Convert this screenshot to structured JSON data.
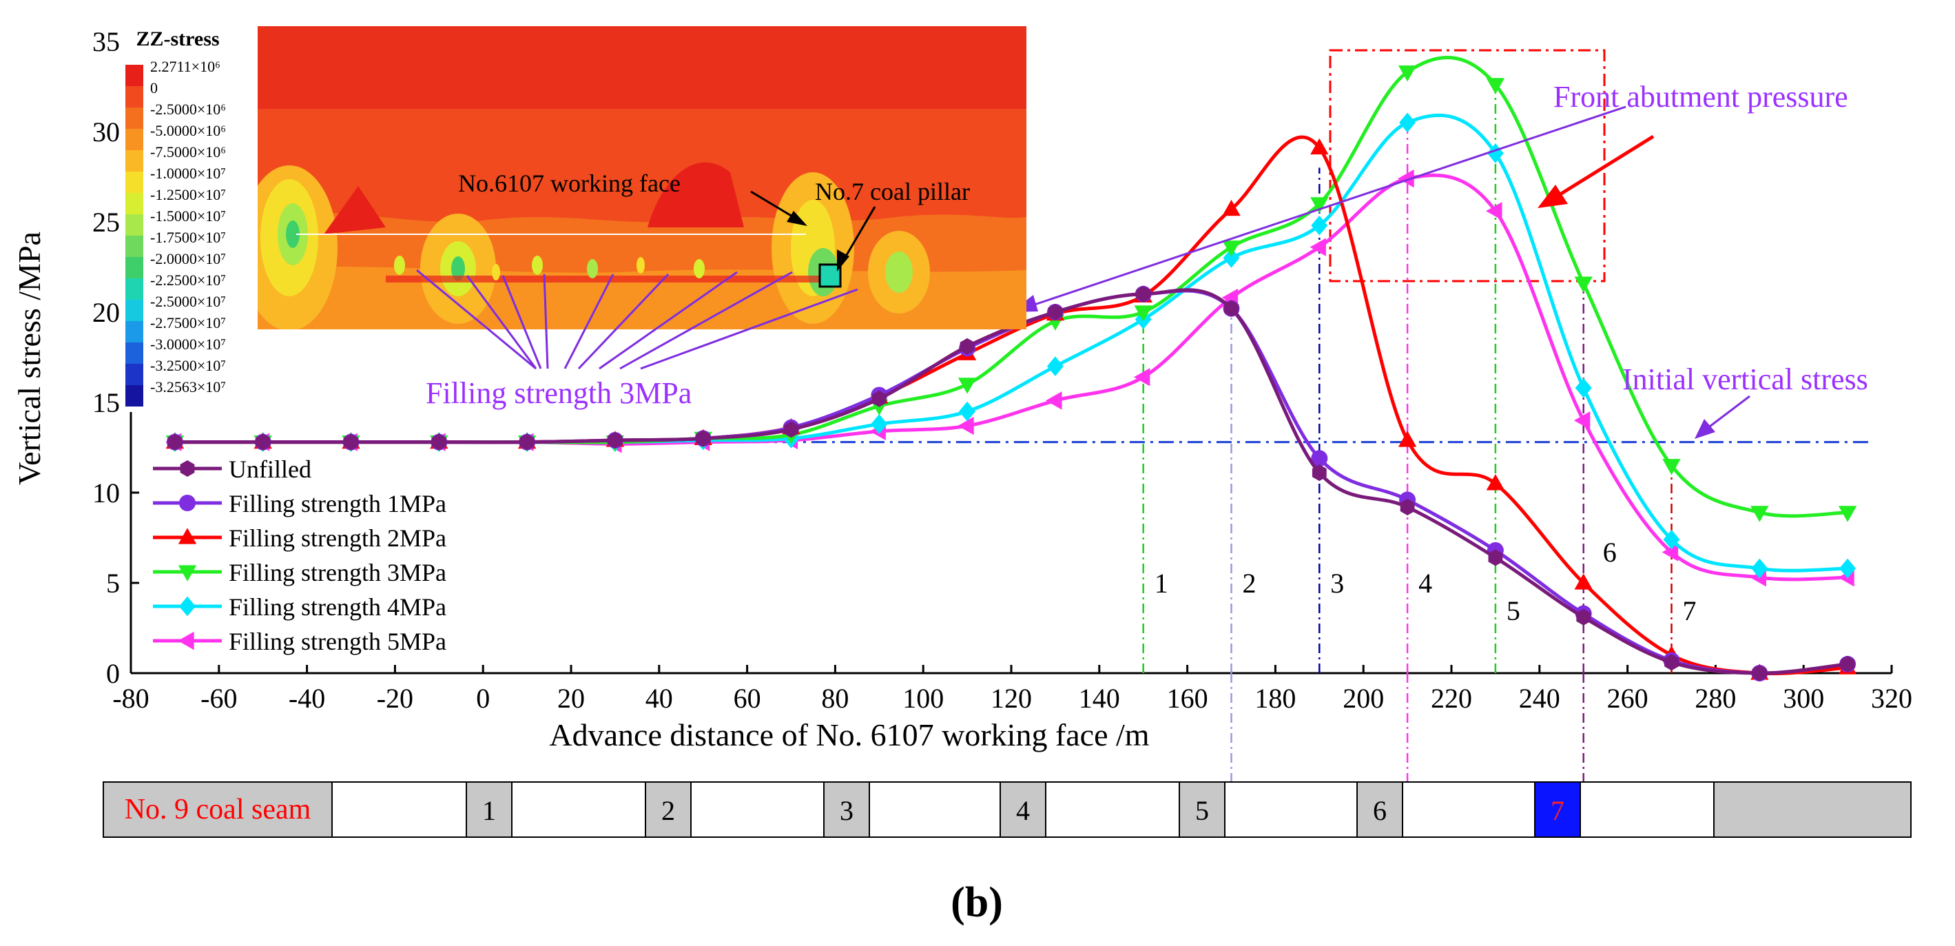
{
  "chart_data": {
    "type": "line",
    "xlabel": "Advance distance of No. 6107 working face /m",
    "ylabel": "Vertical stress /MPa",
    "xlim": [
      -80,
      320
    ],
    "ylim": [
      0,
      35
    ],
    "xticks": [
      -80,
      -60,
      -40,
      -20,
      0,
      20,
      40,
      60,
      80,
      100,
      120,
      140,
      160,
      180,
      200,
      220,
      240,
      260,
      280,
      300,
      320
    ],
    "yticks": [
      0,
      5,
      10,
      15,
      20,
      25,
      30,
      35
    ],
    "x": [
      -70,
      -50,
      -30,
      -10,
      10,
      30,
      50,
      70,
      90,
      110,
      130,
      150,
      170,
      190,
      210,
      230,
      250,
      270,
      290,
      310
    ],
    "series": [
      {
        "name": "Unfilled",
        "color": "#7a1a7a",
        "marker": "hexagon",
        "values": [
          12.8,
          12.8,
          12.8,
          12.8,
          12.8,
          12.9,
          13.0,
          13.5,
          15.2,
          18.1,
          20.0,
          21.0,
          20.2,
          11.1,
          9.2,
          6.4,
          3.1,
          0.6,
          0.0,
          0.5
        ]
      },
      {
        "name": "Filling strength 1MPa",
        "color": "#7f2de0",
        "marker": "circle",
        "values": [
          12.8,
          12.8,
          12.8,
          12.8,
          12.8,
          12.9,
          13.0,
          13.6,
          15.4,
          18.0,
          20.0,
          21.0,
          20.2,
          11.9,
          9.6,
          6.8,
          3.3,
          0.7,
          0.0,
          0.5
        ]
      },
      {
        "name": "Filling strength 2MPa",
        "color": "#ff0000",
        "marker": "triangle-up",
        "values": [
          12.8,
          12.8,
          12.8,
          12.8,
          12.8,
          12.9,
          13.0,
          13.6,
          15.3,
          17.7,
          19.9,
          20.9,
          25.7,
          29.1,
          12.9,
          10.5,
          5.0,
          1.0,
          0.0,
          0.3
        ]
      },
      {
        "name": "Filling strength 3MPa",
        "color": "#22ee22",
        "marker": "triangle-down",
        "values": [
          12.8,
          12.8,
          12.8,
          12.8,
          12.8,
          12.8,
          13.0,
          13.2,
          14.8,
          16.0,
          19.5,
          20.0,
          23.6,
          26.0,
          33.3,
          32.6,
          21.6,
          11.5,
          8.9,
          8.9
        ]
      },
      {
        "name": "Filling strength 4MPa",
        "color": "#00e5ff",
        "marker": "diamond",
        "values": [
          12.8,
          12.8,
          12.8,
          12.8,
          12.8,
          12.8,
          12.9,
          13.0,
          13.8,
          14.5,
          17.0,
          19.6,
          23.0,
          24.8,
          30.5,
          28.8,
          15.8,
          7.4,
          5.8,
          5.8
        ]
      },
      {
        "name": "Filling strength 5MPa",
        "color": "#ff33ee",
        "marker": "triangle-left",
        "values": [
          12.8,
          12.8,
          12.8,
          12.8,
          12.8,
          12.7,
          12.8,
          12.9,
          13.4,
          13.7,
          15.1,
          16.4,
          20.8,
          23.6,
          27.4,
          25.6,
          14.0,
          6.7,
          5.3,
          5.3
        ]
      }
    ],
    "initial_stress": {
      "label": "Initial vertical stress",
      "value": 12.8
    },
    "vertical_markers": [
      {
        "label": "1",
        "x": 150,
        "color": "#22cc22"
      },
      {
        "label": "2",
        "x": 170,
        "color": "#9999dd"
      },
      {
        "label": "3",
        "x": 190,
        "color": "#0000aa"
      },
      {
        "label": "4",
        "x": 210,
        "color": "#ff33ee"
      },
      {
        "label": "5",
        "x": 230,
        "color": "#22cc22"
      },
      {
        "label": "6",
        "x": 250,
        "color": "#7a1a7a"
      },
      {
        "label": "7",
        "x": 270,
        "color": "#cc0000"
      }
    ],
    "annotations": {
      "front_abutment": "Front abutment pressure",
      "initial_vertical_stress": "Initial vertical stress",
      "filling_strength": "Filling strength 3MPa",
      "working_face": "No.6107 working face",
      "coal_pillar": "No.7 coal pillar"
    },
    "contour": {
      "title": "ZZ-stress",
      "levels": [
        "2.2711×10⁶",
        "0",
        "-2.5000×10⁶",
        "-5.0000×10⁶",
        "-7.5000×10⁶",
        "-1.0000×10⁷",
        "-1.2500×10⁷",
        "-1.5000×10⁷",
        "-1.7500×10⁷",
        "-2.0000×10⁷",
        "-2.2500×10⁷",
        "-2.5000×10⁷",
        "-2.7500×10⁷",
        "-3.0000×10⁷",
        "-3.2500×10⁷",
        "-3.2563×10⁷"
      ],
      "colors": [
        "#e8201a",
        "#f04a1e",
        "#f4701f",
        "#f89322",
        "#fab726",
        "#f6df2a",
        "#d8ee30",
        "#a9e84a",
        "#6fd95d",
        "#3fcf6a",
        "#1fd4b0",
        "#16c9e0",
        "#1a9ae8",
        "#1c62dc",
        "#1c34c8",
        "#1414a0"
      ]
    },
    "seam_bar": {
      "label": "No. 9 coal seam",
      "pillars": [
        "1",
        "2",
        "3",
        "4",
        "5",
        "6",
        "7"
      ]
    },
    "panel_label": "(b)"
  }
}
